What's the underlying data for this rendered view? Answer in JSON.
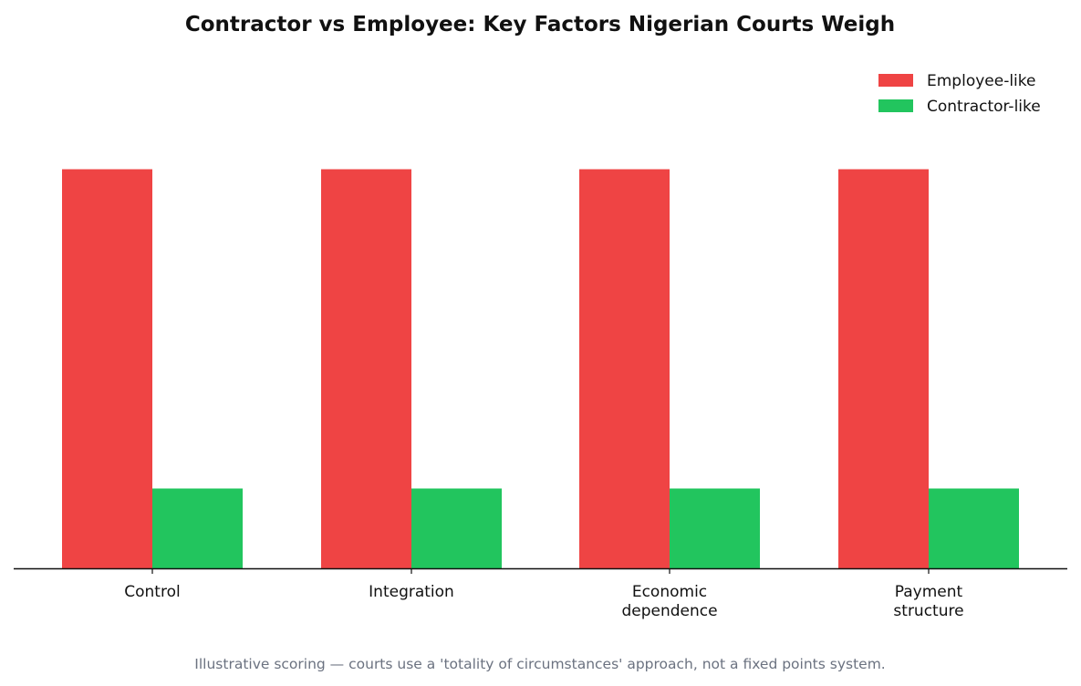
{
  "chart_data": {
    "type": "bar",
    "title": "Contractor vs Employee: Key Factors Nigerian Courts Weigh",
    "categories": [
      [
        "Control"
      ],
      [
        "Integration"
      ],
      [
        "Economic",
        "dependence"
      ],
      [
        "Payment",
        "structure"
      ]
    ],
    "series": [
      {
        "name": "Employee-like",
        "color": "#ef4444",
        "values": [
          5,
          5,
          5,
          5
        ]
      },
      {
        "name": "Contractor-like",
        "color": "#22c55e",
        "values": [
          1,
          1,
          1,
          1
        ]
      }
    ],
    "ylim": [
      0,
      6.4
    ],
    "xlabel": "",
    "ylabel": "",
    "grid": false,
    "legend_position": "top-right",
    "footnote": "Illustrative scoring — courts use a 'totality of circumstances' approach, not a fixed points system."
  }
}
